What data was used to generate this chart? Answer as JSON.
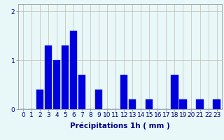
{
  "hours": [
    0,
    1,
    2,
    3,
    4,
    5,
    6,
    7,
    8,
    9,
    10,
    11,
    12,
    13,
    14,
    15,
    16,
    17,
    18,
    19,
    20,
    21,
    22,
    23
  ],
  "values": [
    0,
    0,
    0.4,
    1.3,
    1.0,
    1.3,
    1.6,
    0.7,
    0,
    0.4,
    0,
    0,
    0.7,
    0.2,
    0,
    0.2,
    0,
    0,
    0.7,
    0.2,
    0,
    0.2,
    0,
    0.2
  ],
  "bar_color": "#0000dd",
  "bar_edge_color": "#1111ff",
  "background_color": "#e8f8f8",
  "grid_color": "#c8b8b0",
  "text_color": "#000088",
  "xlabel": "Précipitations 1h ( mm )",
  "ylim": [
    0,
    2.15
  ],
  "yticks": [
    0,
    1,
    2
  ],
  "xlim": [
    -0.6,
    23.6
  ],
  "tick_fontsize": 6.5,
  "label_fontsize": 7.5
}
